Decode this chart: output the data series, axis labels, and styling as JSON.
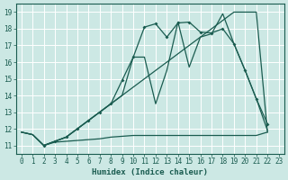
{
  "title": "",
  "xlabel": "Humidex (Indice chaleur)",
  "ylabel": "",
  "xlim": [
    -0.5,
    23.5
  ],
  "ylim": [
    10.5,
    19.5
  ],
  "xticks": [
    0,
    1,
    2,
    3,
    4,
    5,
    6,
    7,
    8,
    9,
    10,
    11,
    12,
    13,
    14,
    15,
    16,
    17,
    18,
    19,
    20,
    21,
    22,
    23
  ],
  "yticks": [
    11,
    12,
    13,
    14,
    15,
    16,
    17,
    18,
    19
  ],
  "bg_color": "#cce8e4",
  "line_color": "#1a5c50",
  "grid_color": "#ffffff",
  "lines": [
    {
      "x": [
        0,
        1,
        2,
        3,
        4,
        5,
        6,
        7,
        8,
        9,
        10,
        11,
        12,
        13,
        14,
        15,
        16,
        17,
        18,
        19,
        20,
        21,
        22
      ],
      "y": [
        11.8,
        11.65,
        11.0,
        11.2,
        11.25,
        11.3,
        11.35,
        11.4,
        11.5,
        11.55,
        11.6,
        11.6,
        11.6,
        11.6,
        11.6,
        11.6,
        11.6,
        11.6,
        11.6,
        11.6,
        11.6,
        11.6,
        11.8
      ],
      "marker": false
    },
    {
      "x": [
        0,
        1,
        2,
        3,
        4,
        5,
        6,
        7,
        8,
        9,
        10,
        11,
        12,
        13,
        14,
        15,
        16,
        17,
        18,
        19,
        20,
        21,
        22
      ],
      "y": [
        11.8,
        11.65,
        11.0,
        11.25,
        11.5,
        12.0,
        12.5,
        13.0,
        13.5,
        14.0,
        14.5,
        15.0,
        15.5,
        16.0,
        16.5,
        17.0,
        17.5,
        18.0,
        18.5,
        19.0,
        19.0,
        19.0,
        11.8
      ],
      "marker": false
    },
    {
      "x": [
        0,
        1,
        2,
        3,
        4,
        5,
        6,
        7,
        8,
        9,
        10,
        11,
        12,
        13,
        14,
        15,
        16,
        17,
        18,
        19,
        20,
        21,
        22
      ],
      "y": [
        11.8,
        11.65,
        11.0,
        11.25,
        11.5,
        12.0,
        12.5,
        13.0,
        13.5,
        14.0,
        16.3,
        16.3,
        13.5,
        15.5,
        18.4,
        15.7,
        17.5,
        17.7,
        18.9,
        17.1,
        15.5,
        13.8,
        11.9
      ],
      "marker": false
    },
    {
      "x": [
        2,
        3,
        4,
        5,
        6,
        7,
        8,
        9,
        10,
        11,
        12,
        13,
        14,
        15,
        16,
        17,
        18,
        19,
        20,
        21,
        22
      ],
      "y": [
        11.0,
        11.25,
        11.5,
        12.0,
        12.5,
        13.0,
        13.5,
        14.9,
        16.3,
        18.1,
        18.3,
        17.5,
        18.35,
        18.4,
        17.8,
        17.75,
        18.0,
        17.1,
        15.5,
        13.8,
        12.3
      ],
      "marker": true
    }
  ]
}
